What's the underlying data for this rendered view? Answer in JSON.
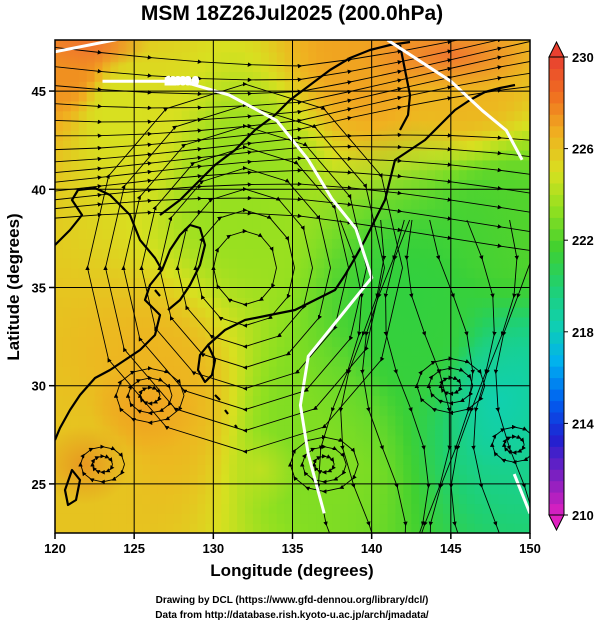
{
  "chart_data": {
    "type": "heatmap",
    "title": "MSM 18Z26Jul2025 (200.0hPa)",
    "xlabel": "Longitude (degrees)",
    "ylabel": "Latitude (degrees)",
    "xlim": [
      120,
      150
    ],
    "ylim": [
      22.5,
      47.6
    ],
    "x_ticks": [
      120,
      125,
      130,
      135,
      140,
      145,
      150
    ],
    "y_ticks": [
      25,
      30,
      35,
      40,
      45
    ],
    "grid": true,
    "colorbar": {
      "min": 210,
      "max": 230,
      "ticks": [
        210,
        214,
        218,
        222,
        226,
        230
      ],
      "colors": [
        "#e020c0",
        "#8020c0",
        "#2020d0",
        "#0060f0",
        "#00b0f0",
        "#10d0b0",
        "#20d070",
        "#40d030",
        "#90e020",
        "#d8e020",
        "#f0b020",
        "#f07020",
        "#e84030"
      ]
    },
    "field_samples": [
      {
        "lon": 121,
        "lat": 46.5,
        "value": 227.5
      },
      {
        "lon": 124,
        "lat": 44,
        "value": 225
      },
      {
        "lon": 140,
        "lat": 47,
        "value": 227
      },
      {
        "lon": 146,
        "lat": 46,
        "value": 226.5
      },
      {
        "lon": 132,
        "lat": 40,
        "value": 223.5
      },
      {
        "lon": 126,
        "lat": 29.5,
        "value": 226.5
      },
      {
        "lon": 122,
        "lat": 26,
        "value": 226
      },
      {
        "lon": 137,
        "lat": 28,
        "value": 223
      },
      {
        "lon": 143,
        "lat": 33,
        "value": 221.5
      },
      {
        "lon": 148,
        "lat": 30,
        "value": 219
      },
      {
        "lon": 148,
        "lat": 38,
        "value": 222
      }
    ],
    "contours": [
      {
        "label": "12300.0",
        "points": [
          [
            123,
            45.5
          ],
          [
            128,
            45.5
          ],
          [
            131,
            44.8
          ],
          [
            134,
            43.5
          ],
          [
            136,
            41.5
          ],
          [
            137.5,
            39.5
          ],
          [
            139,
            38
          ],
          [
            140,
            35.5
          ],
          [
            138,
            33.5
          ],
          [
            136,
            31.5
          ],
          [
            135.5,
            29
          ],
          [
            136,
            26.5
          ],
          [
            137,
            23.5
          ]
        ]
      },
      {
        "label": "",
        "points": [
          [
            120,
            47
          ],
          [
            125,
            47.8
          ]
        ]
      },
      {
        "label": "",
        "points": [
          [
            141,
            47.6
          ],
          [
            145,
            45.5
          ],
          [
            147,
            44
          ],
          [
            148.5,
            43
          ],
          [
            149.5,
            41.5
          ]
        ]
      },
      {
        "label": "",
        "points": [
          [
            149,
            25.5
          ],
          [
            150,
            23.5
          ]
        ]
      }
    ],
    "annotations": [
      "12300.0"
    ]
  },
  "credits": {
    "line1": "Drawing by DCL (https://www.gfd-dennou.org/library/dcl/)",
    "line2": "Data from http://database.rish.kyoto-u.ac.jp/arch/jmadata/"
  }
}
